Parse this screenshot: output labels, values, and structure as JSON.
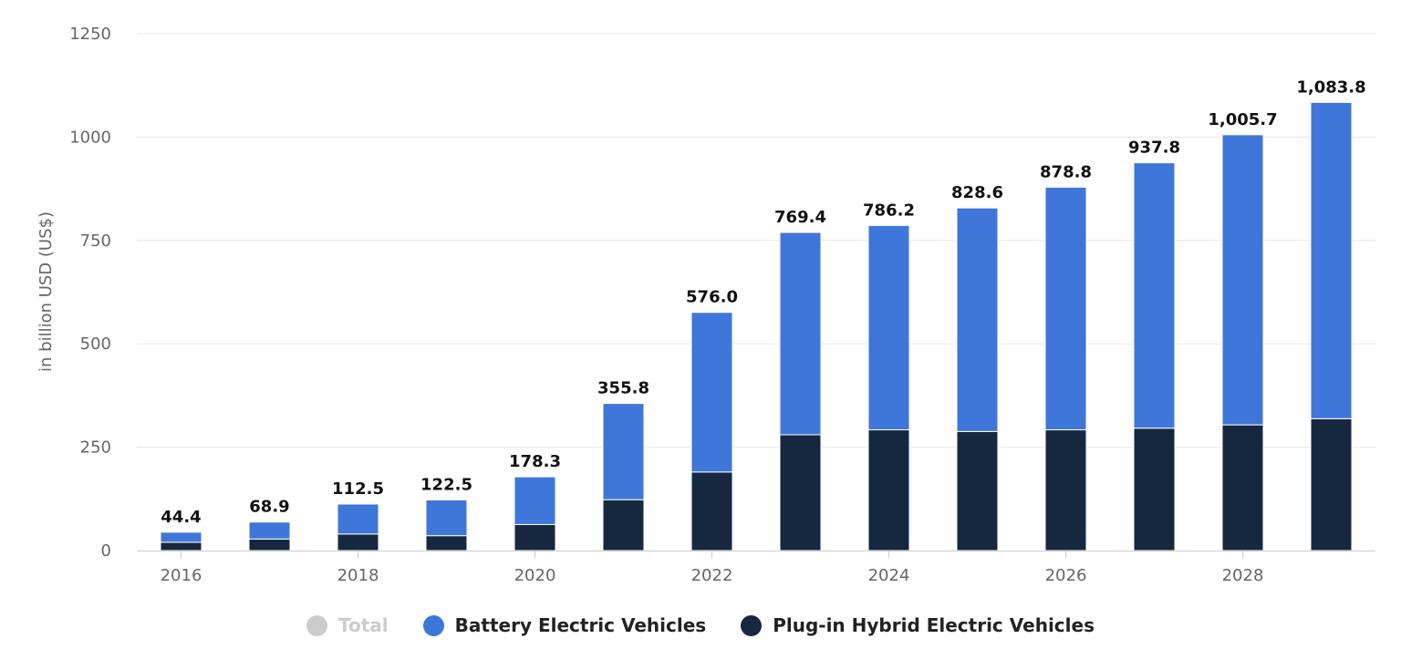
{
  "chart_data": {
    "type": "bar",
    "stacked": true,
    "ylabel": "in billion USD (US$)",
    "ylim": [
      0,
      1250
    ],
    "yticks": [
      0,
      250,
      500,
      750,
      1000,
      1250
    ],
    "categories": [
      "2016",
      "2017",
      "2018",
      "2019",
      "2020",
      "2021",
      "2022",
      "2023",
      "2024",
      "2025",
      "2026",
      "2027",
      "2028",
      "2029"
    ],
    "xtick_labels": [
      "2016",
      "2018",
      "2020",
      "2022",
      "2024",
      "2026",
      "2028"
    ],
    "series": [
      {
        "name": "Plug-in Hybrid Electric Vehicles",
        "color": "#162840",
        "values": [
          20,
          28,
          40,
          36,
          63,
          123,
          190,
          280,
          292,
          288,
          292,
          296,
          304,
          319
        ]
      },
      {
        "name": "Battery Electric Vehicles",
        "color": "#3f76d9",
        "values": [
          24.4,
          40.9,
          72.5,
          86.5,
          115.3,
          232.8,
          386.0,
          489.4,
          494.2,
          540.6,
          586.8,
          641.8,
          701.7,
          764.8
        ]
      }
    ],
    "totals": [
      "44.4",
      "68.9",
      "112.5",
      "122.5",
      "178.3",
      "355.8",
      "576.0",
      "769.4",
      "786.2",
      "828.6",
      "878.8",
      "937.8",
      "1,005.7",
      "1,083.8"
    ],
    "grid": true,
    "legend_position": "bottom-center"
  },
  "legend": [
    {
      "label": "Total",
      "color": "#cccccc",
      "hidden": true
    },
    {
      "label": "Battery Electric Vehicles",
      "color": "#3f76d9",
      "hidden": false
    },
    {
      "label": "Plug-in Hybrid Electric Vehicles",
      "color": "#162840",
      "hidden": false
    }
  ]
}
